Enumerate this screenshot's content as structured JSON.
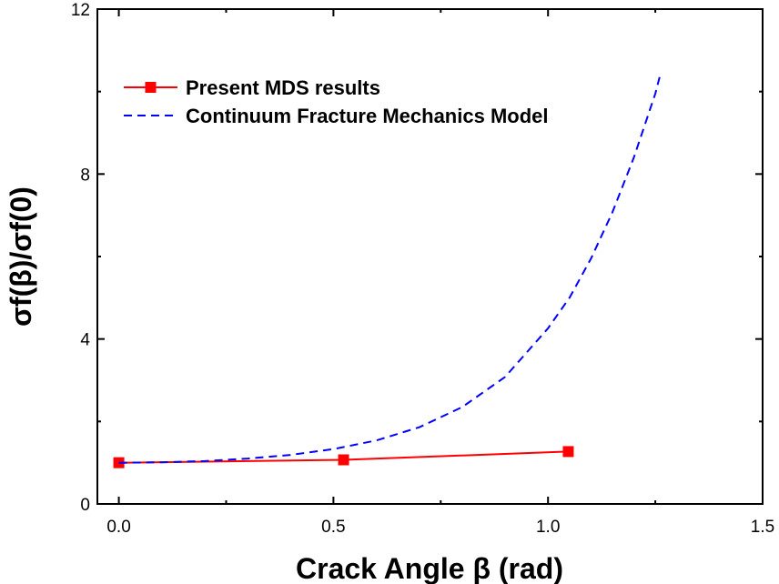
{
  "chart_data": {
    "type": "line",
    "title": "",
    "xlabel": "Crack Angle β (rad)",
    "ylabel": "σf(β)/σf(0)",
    "xlim": [
      -0.05,
      1.5
    ],
    "ylim": [
      0,
      12
    ],
    "x_ticks": [
      0.0,
      0.5,
      1.0,
      1.5
    ],
    "x_tick_labels": [
      "0.0",
      "0.5",
      "1.0",
      "1.5"
    ],
    "y_ticks": [
      0,
      4,
      8,
      12
    ],
    "y_tick_labels": [
      "0",
      "4",
      "8",
      "12"
    ],
    "grid": false,
    "legend_position": "top-left",
    "series": [
      {
        "name": "Present MDS results",
        "color": "#ff0000",
        "style": "solid",
        "marker": "square",
        "x": [
          0.0,
          0.5236,
          1.0472
        ],
        "y": [
          1.0,
          1.07,
          1.27
        ]
      },
      {
        "name": "Continuum Fracture Mechanics Model",
        "color": "#0000ff",
        "style": "dashed",
        "marker": "none",
        "x": [
          0.0,
          0.1,
          0.2,
          0.3,
          0.4,
          0.5,
          0.6,
          0.7,
          0.8,
          0.9,
          1.0,
          1.05,
          1.1,
          1.15,
          1.2,
          1.25,
          1.26
        ],
        "y": [
          1.0,
          1.01,
          1.04,
          1.1,
          1.19,
          1.33,
          1.54,
          1.86,
          2.35,
          3.08,
          4.26,
          5.0,
          5.95,
          7.07,
          8.4,
          9.95,
          10.35
        ]
      }
    ]
  }
}
